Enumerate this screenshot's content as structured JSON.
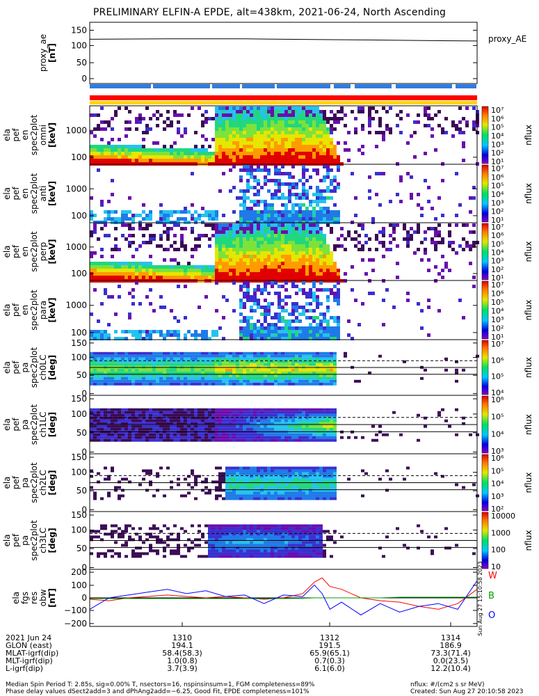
{
  "title": "PRELIMINARY ELFIN-A EPDE, alt=438km, 2021-06-24, North Ascending",
  "chart_data": [
    {
      "type": "line",
      "panel": "proxy_ae",
      "ylabel": [
        "proxy_ae",
        "[nT]"
      ],
      "legend": "proxy_AE",
      "ylim": [
        -10,
        160
      ],
      "yticks": [
        "150",
        "100",
        "50",
        "0"
      ],
      "x_minutes": [
        0,
        2,
        4,
        6,
        7.2,
        8,
        10
      ],
      "values": [
        113,
        114,
        114,
        112,
        111,
        110,
        108
      ]
    },
    {
      "type": "heatmap",
      "panel": "pef en spec2plot omni",
      "ylabel": [
        "ela",
        "pef",
        "en",
        "spec2plot",
        "omni",
        "[keV]"
      ],
      "zlabel": "nflux",
      "yticks": [
        "1000",
        "100"
      ],
      "zticks": [
        "10⁷",
        "10⁶",
        "10⁵",
        "10⁴",
        "10³",
        "10²",
        "10¹"
      ]
    },
    {
      "type": "heatmap",
      "panel": "pef en spec2plot anti",
      "ylabel": [
        "ela",
        "pef",
        "en",
        "spec2plot",
        "anti",
        "[keV]"
      ],
      "zlabel": "nflux",
      "yticks": [
        "1000",
        "100"
      ],
      "zticks": [
        "10⁷",
        "10⁶",
        "10⁵",
        "10⁴",
        "10³",
        "10²",
        "10¹"
      ]
    },
    {
      "type": "heatmap",
      "panel": "pef en spec2plot perp",
      "ylabel": [
        "ela",
        "pef",
        "en",
        "spec2plot",
        "perp",
        "[keV]"
      ],
      "zlabel": "nflux",
      "yticks": [
        "1000",
        "100"
      ],
      "zticks": [
        "10⁷",
        "10⁶",
        "10⁵",
        "10⁴",
        "10³",
        "10²",
        "10¹"
      ]
    },
    {
      "type": "heatmap",
      "panel": "pef en spec2plot para",
      "ylabel": [
        "ela",
        "pef",
        "en",
        "spec2plot",
        "para",
        "[keV]"
      ],
      "zlabel": "nflux",
      "yticks": [
        "1000",
        "100"
      ],
      "zticks": [
        "10⁷",
        "10⁶",
        "10⁵",
        "10⁴",
        "10³",
        "10²",
        "10¹"
      ]
    },
    {
      "type": "heatmap",
      "panel": "pef pa spec2plot ch0LC",
      "ylabel": [
        "ela",
        "pef",
        "pa",
        "spec2plot",
        "ch0LC",
        "[deg]"
      ],
      "zlabel": "nflux",
      "ylim": [
        0,
        180
      ],
      "yticks": [
        "150",
        "100",
        "50",
        "0"
      ],
      "zticks": [
        "10⁷",
        "10⁶",
        "10⁵",
        "10⁴"
      ]
    },
    {
      "type": "heatmap",
      "panel": "pef pa spec2plot ch1LC",
      "ylabel": [
        "ela",
        "pef",
        "pa",
        "spec2plot",
        "ch1LC",
        "[deg]"
      ],
      "zlabel": "nflux",
      "ylim": [
        0,
        180
      ],
      "yticks": [
        "150",
        "100",
        "50",
        "0"
      ],
      "zticks": [
        "10⁶",
        "10⁵",
        "10⁴",
        "10³"
      ]
    },
    {
      "type": "heatmap",
      "panel": "pef pa spec2plot ch2LC",
      "ylabel": [
        "ela",
        "pef",
        "pa",
        "spec2plot",
        "ch2LC",
        "[deg]"
      ],
      "zlabel": "nflux",
      "ylim": [
        0,
        180
      ],
      "yticks": [
        "150",
        "100",
        "50",
        "0"
      ],
      "zticks": [
        "10⁶",
        "10⁵",
        "10⁴",
        "10³",
        "10²"
      ]
    },
    {
      "type": "heatmap",
      "panel": "pef pa spec2plot ch3LC",
      "ylabel": [
        "ela",
        "pef",
        "pa",
        "spec2plot",
        "ch3LC",
        "[deg]"
      ],
      "zlabel": "nflux",
      "ylim": [
        0,
        180
      ],
      "yticks": [
        "150",
        "100",
        "50",
        "0"
      ],
      "zticks": [
        "10000",
        "1000",
        "100",
        "10"
      ]
    },
    {
      "type": "line",
      "panel": "fgs res dbw",
      "ylabel": [
        "ela",
        "fgs",
        "res",
        "obw",
        "[nT]"
      ],
      "ylim": [
        -200,
        200
      ],
      "yticks": [
        "200",
        "100",
        "0",
        "−100",
        "−200"
      ],
      "legend": [
        "W",
        "B",
        "O"
      ],
      "x_minutes": [
        0,
        0.5,
        1,
        1.5,
        2,
        2.5,
        3,
        3.5,
        4,
        4.5,
        5,
        5.5,
        5.8,
        6,
        6.2,
        6.5,
        7,
        7.5,
        8,
        8.5,
        9,
        9.5,
        10
      ],
      "series": [
        {
          "name": "W",
          "color": "#ff0000",
          "values": [
            -10,
            -20,
            0,
            10,
            20,
            10,
            0,
            10,
            0,
            -10,
            0,
            30,
            110,
            140,
            80,
            60,
            0,
            -20,
            -30,
            -60,
            -80,
            -40,
            60
          ]
        },
        {
          "name": "B",
          "color": "#00a000",
          "values": [
            -5,
            -5,
            -5,
            -5,
            -5,
            -5,
            -5,
            -5,
            -5,
            -5,
            -5,
            -3,
            0,
            0,
            0,
            0,
            0,
            0,
            5,
            5,
            5,
            5,
            5
          ]
        },
        {
          "name": "O",
          "color": "#0000ff",
          "values": [
            -80,
            0,
            20,
            40,
            60,
            30,
            50,
            10,
            20,
            -40,
            20,
            10,
            90,
            30,
            -80,
            -30,
            -120,
            -40,
            -100,
            -60,
            -40,
            -80,
            120
          ]
        }
      ]
    }
  ],
  "x_axis": {
    "tick_labels": [
      "1310",
      "1312",
      "1314"
    ],
    "row_labels": [
      "2021 Jun 24",
      "GLON (east)",
      "MLAT-igrf(dip)",
      "MLT-igrf(dip)",
      "L-igrf(dip)"
    ],
    "rows": [
      [
        "194.1",
        "191.5",
        "186.9"
      ],
      [
        "58.4(58.3)",
        "65.9(65.1)",
        "73.3(71.4)"
      ],
      [
        "1.0(0.8)",
        "0.7(0.3)",
        "0.0(23.5)"
      ],
      [
        "3.7(3.9)",
        "6.1(6.0)",
        "12.2(10.4)"
      ]
    ]
  },
  "footer": {
    "line1": "Median Spin Period T: 2.85s, sig=0.00% T, nsectors=16, nspinsinsum=1, FGM completeness=89%",
    "line2": "Phase delay values dSect2add=3 and dPhAng2add=−6.25, Good Fit, EPDE completeness=101%",
    "units": "nflux: #/(cm2 s sr MeV)",
    "created": "Created: Sun Aug 27 20:10:58 2023",
    "side_stamp": "Sun Aug 27 15:10:58 2023"
  },
  "colors": {
    "blue_bar": "#2f7de1",
    "red_bar": "#ff0000",
    "yellow_bar": "#ffd400"
  }
}
